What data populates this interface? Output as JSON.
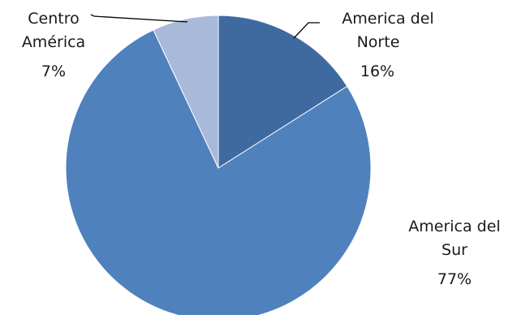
{
  "chart_data": {
    "type": "pie",
    "title": "",
    "start_angle_deg": 0,
    "direction": "clockwise",
    "slices": [
      {
        "name_lines": [
          "America del",
          "Norte"
        ],
        "value": 16,
        "label": "16%",
        "color": "#3f6aa0"
      },
      {
        "name_lines": [
          "America del",
          "Sur"
        ],
        "value": 77,
        "label": "77%",
        "color": "#4f81bd"
      },
      {
        "name_lines": [
          "Centro",
          "América"
        ],
        "value": 7,
        "label": "7%",
        "color": "#a8b9d9"
      }
    ],
    "legend": "none",
    "leader_lines": "thin black, on 'America del Norte' and 'Centro América'"
  }
}
